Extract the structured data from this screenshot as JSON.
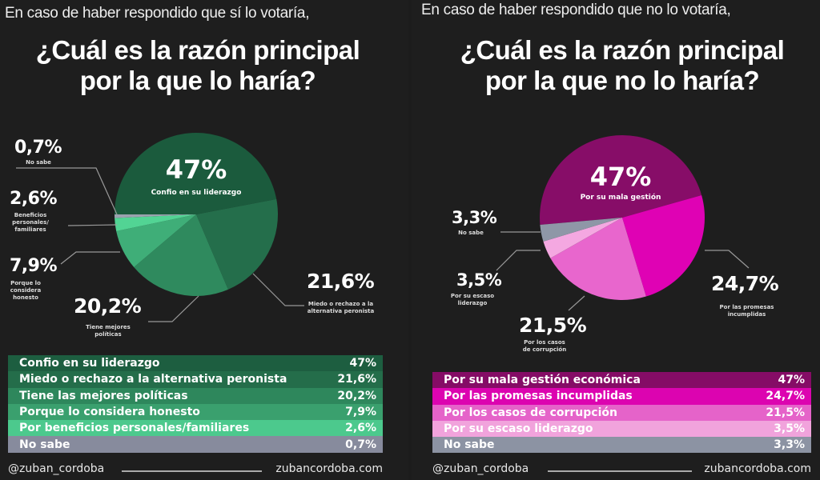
{
  "left": {
    "subtitle": "En caso de haber respondido que sí lo votaría,",
    "title_line1": "¿Cuál es la razón principal",
    "title_line2": "por la que lo haría?",
    "pie_labels": [
      {
        "value": "47%",
        "label": "Confio en su liderazgo"
      },
      {
        "value": "21,6%",
        "label": "Miedo o rechazo a la alternativa peronista"
      },
      {
        "value": "20,2%",
        "label": "Tiene mejores políticas"
      },
      {
        "value": "7,9%",
        "label": "Porque lo considera honesto"
      },
      {
        "value": "2,6%",
        "label": "Beneficios personales/ familiares"
      },
      {
        "value": "0,7%",
        "label": "No sabe"
      }
    ],
    "table": [
      {
        "label": "Confio en su liderazgo",
        "value": "47%"
      },
      {
        "label": "Miedo o rechazo a la alternativa peronista",
        "value": "21,6%"
      },
      {
        "label": "Tiene las mejores políticas",
        "value": "20,2%"
      },
      {
        "label": "Porque lo considera honesto",
        "value": "7,9%"
      },
      {
        "label": "Por beneficios personales/familiares",
        "value": "2,6%"
      },
      {
        "label": "No sabe",
        "value": "0,7%"
      }
    ],
    "footer_handle": "@zuban_cordoba",
    "footer_url": "zubancordoba.com"
  },
  "right": {
    "subtitle": "En caso de haber respondido que no lo votaría,",
    "title_line1": "¿Cuál es la razón principal",
    "title_line2": "por la que no lo haría?",
    "pie_labels": [
      {
        "value": "47%",
        "label": "Por su mala gestión"
      },
      {
        "value": "24,7%",
        "label": "Por las promesas incumplidas"
      },
      {
        "value": "21,5%",
        "label": "Por los casos de corrupción"
      },
      {
        "value": "3,5%",
        "label": "Por su escaso liderazgo"
      },
      {
        "value": "3,3%",
        "label": "No sabe"
      }
    ],
    "table": [
      {
        "label": "Por su mala gestión económica",
        "value": "47%"
      },
      {
        "label": "Por las promesas incumplidas",
        "value": "24,7%"
      },
      {
        "label": "Por los casos de corrupción",
        "value": "21,5%"
      },
      {
        "label": "Por su escaso liderazgo",
        "value": "3,5%"
      },
      {
        "label": "No sabe",
        "value": "3,3%"
      }
    ],
    "footer_handle": "@zuban_cordoba",
    "footer_url": "zubancordoba.com"
  },
  "chart_data": [
    {
      "type": "pie",
      "title": "¿Cuál es la razón principal por la que lo haría?",
      "categories": [
        "Confio en su liderazgo",
        "Miedo o rechazo a la alternativa peronista",
        "Tiene las mejores políticas",
        "Porque lo considera honesto",
        "Por beneficios personales/familiares",
        "No sabe"
      ],
      "values": [
        47,
        21.6,
        20.2,
        7.9,
        2.6,
        0.7
      ],
      "colors": [
        "#1b5b3d",
        "#246e4b",
        "#2f8a5e",
        "#3fae78",
        "#52d494",
        "#9aa2ae"
      ],
      "table_colors": [
        "#1d5e40",
        "#246d4a",
        "#2e875c",
        "#3aa06e",
        "#4cc98d",
        "#878b9d"
      ]
    },
    {
      "type": "pie",
      "title": "¿Cuál es la razón principal por la que no lo haría?",
      "categories": [
        "Por su mala gestión económica",
        "Por las promesas incumplidas",
        "Por los casos de corrupción",
        "Por su escaso liderazgo",
        "No sabe"
      ],
      "values": [
        47,
        24.7,
        21.5,
        3.5,
        3.3
      ],
      "colors": [
        "#870d68",
        "#df02b4",
        "#e866cd",
        "#f4a8e1",
        "#8f97a7"
      ],
      "table_colors": [
        "#850c66",
        "#dc04b0",
        "#e563c9",
        "#f1a3dc",
        "#8c93a3"
      ]
    }
  ]
}
